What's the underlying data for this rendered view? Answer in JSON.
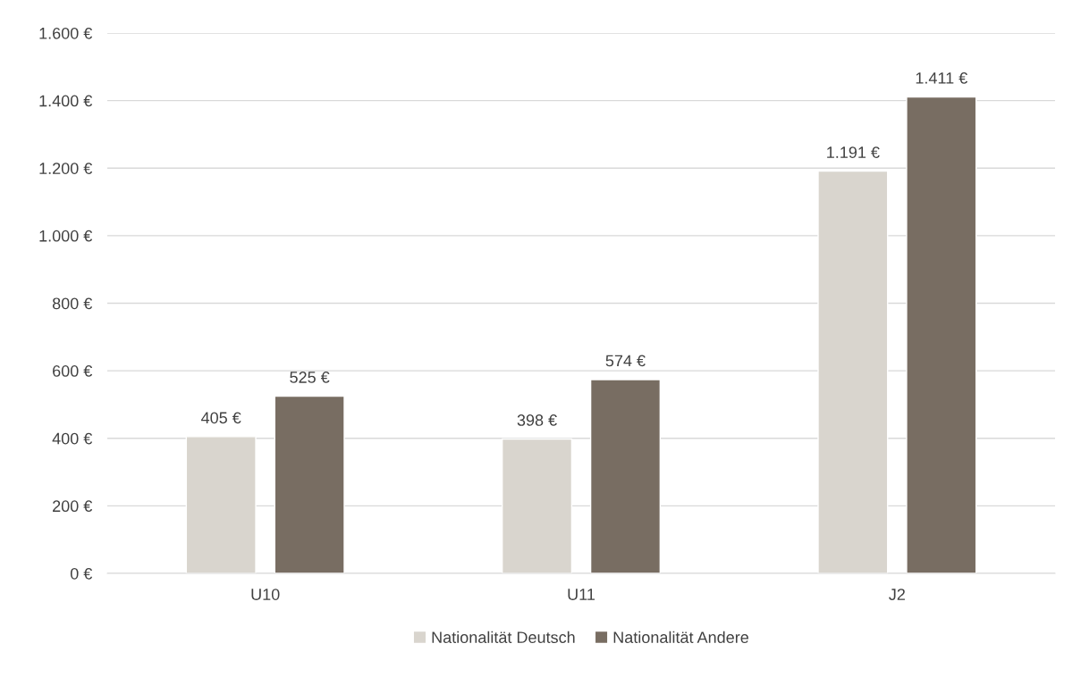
{
  "chart_data": {
    "type": "bar",
    "categories": [
      "U10",
      "U11",
      "J2"
    ],
    "series": [
      {
        "name": "Nationalität Deutsch",
        "color": "#d9d5ce",
        "values": [
          405,
          398,
          1191
        ],
        "value_labels": [
          "405 €",
          "398 €",
          "1.191 €"
        ]
      },
      {
        "name": "Nationalität Andere",
        "color": "#786d62",
        "values": [
          525,
          574,
          1411
        ],
        "value_labels": [
          "525 €",
          "574 €",
          "1.411 €"
        ]
      }
    ],
    "ylim": [
      0,
      1600
    ],
    "yticks": [
      {
        "value": 0,
        "label": "0 €"
      },
      {
        "value": 200,
        "label": "200 €"
      },
      {
        "value": 400,
        "label": "400 €"
      },
      {
        "value": 600,
        "label": "600 €"
      },
      {
        "value": 800,
        "label": "800 €"
      },
      {
        "value": 1000,
        "label": "1.000 €"
      },
      {
        "value": 1200,
        "label": "1.200 €"
      },
      {
        "value": 1400,
        "label": "1.400 €"
      },
      {
        "value": 1600,
        "label": "1.600 €"
      }
    ],
    "grid": "y",
    "legend": "bottom"
  }
}
